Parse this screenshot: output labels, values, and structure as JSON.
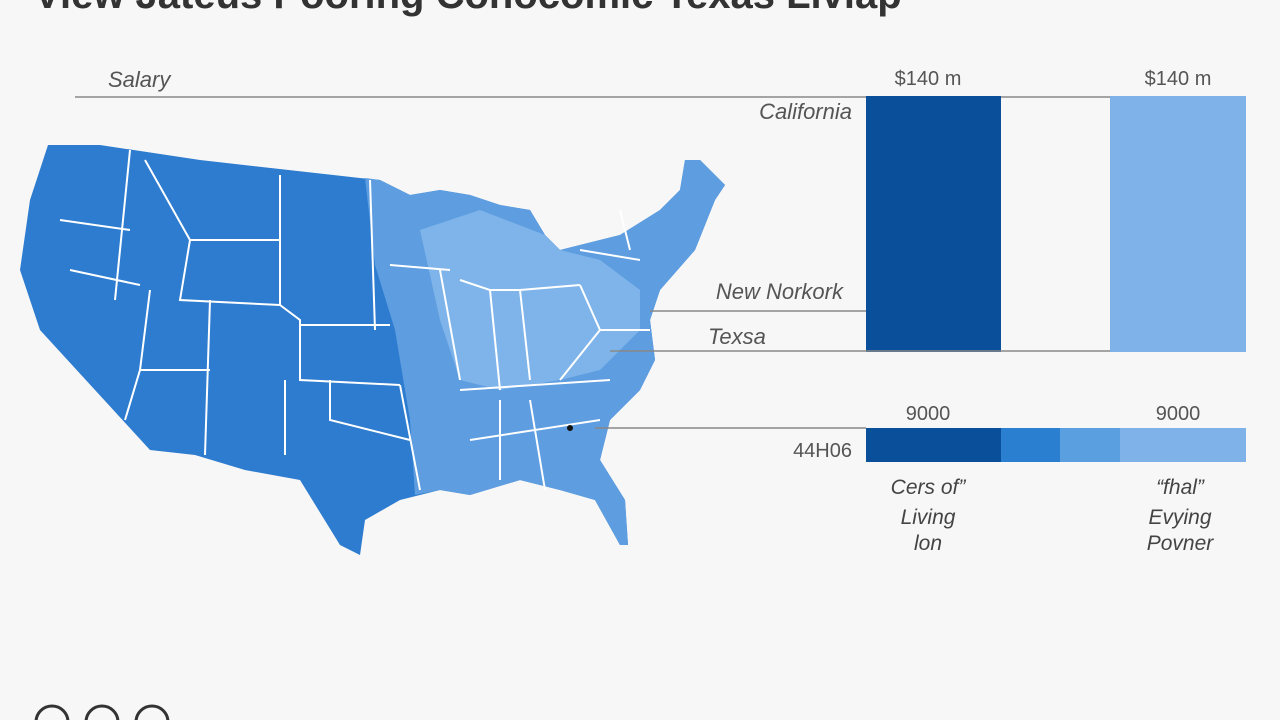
{
  "header": {
    "title": "View Jateus Pooring Conocomic Texas Livlap"
  },
  "salary_panel": {
    "axis_label": "Salary",
    "top_labels": [
      "$140 m",
      "$140 m"
    ],
    "states": [
      "California",
      "New Norkork",
      "Texsa"
    ]
  },
  "cost_panel": {
    "top_labels": [
      "9000",
      "9000"
    ],
    "side_label": "44H06",
    "captions": [
      [
        "Cers of”",
        "Living",
        "lon"
      ],
      [
        "“fhal”",
        "Evying",
        "Povner"
      ]
    ]
  }
}
